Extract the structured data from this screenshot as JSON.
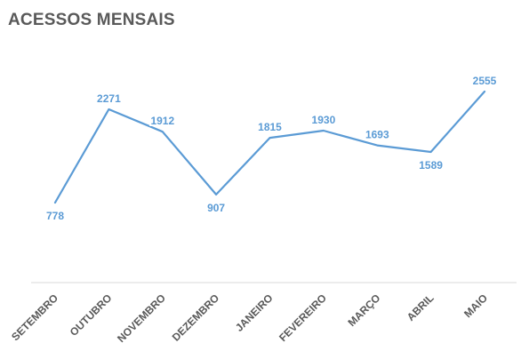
{
  "chart_data": {
    "type": "line",
    "title": "ACESSOS MENSAIS",
    "categories": [
      "SETEMBRO",
      "OUTUBRO",
      "NOVEMBRO",
      "DEZEMBRO",
      "JANEIRO",
      "FEVEREIRO",
      "MARÇO",
      "ABRIL",
      "MAIO"
    ],
    "series": [
      {
        "values": [
          778,
          2271,
          1912,
          907,
          1815,
          1930,
          1693,
          1589,
          2555
        ],
        "color": "#5B9BD5"
      }
    ],
    "data_labels": true,
    "grid": false,
    "legend": "none"
  }
}
